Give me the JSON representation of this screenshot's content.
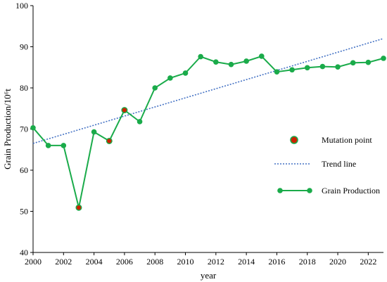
{
  "chart_data": {
    "type": "line",
    "title": "",
    "xlabel": "year",
    "ylabel": "Grain Production/10⁶t",
    "xlim": [
      2000,
      2023
    ],
    "ylim": [
      40,
      100
    ],
    "xticks": [
      "2000",
      "2002",
      "2004",
      "2006",
      "2008",
      "2010",
      "2012",
      "2014",
      "2016",
      "2018",
      "2020",
      "2022"
    ],
    "yticks": [
      "40",
      "50",
      "60",
      "70",
      "80",
      "90",
      "100"
    ],
    "grid": false,
    "legend_position": "right",
    "series": [
      {
        "name": "Grain Production",
        "color": "#1aab4a",
        "x": [
          2000,
          2001,
          2002,
          2003,
          2004,
          2005,
          2006,
          2007,
          2008,
          2009,
          2010,
          2011,
          2012,
          2013,
          2014,
          2015,
          2016,
          2017,
          2018,
          2019,
          2020,
          2021,
          2022,
          2023
        ],
        "y": [
          70.3,
          66.0,
          66.0,
          50.9,
          69.3,
          67.1,
          74.6,
          71.8,
          80.0,
          82.4,
          83.6,
          87.6,
          86.3,
          85.7,
          86.5,
          87.7,
          83.9,
          84.4,
          84.9,
          85.2,
          85.1,
          86.1,
          86.2,
          87.2
        ]
      }
    ],
    "trend_line": {
      "name": "Trend  line",
      "color": "#4472c4",
      "x": [
        2000,
        2023
      ],
      "y": [
        66.5,
        92.0
      ]
    },
    "mutation_points": {
      "name": "Mutation point",
      "fill": "#cc2200",
      "stroke": "#1aab4a",
      "x": [
        2003,
        2005,
        2006
      ],
      "y": [
        50.9,
        67.1,
        74.6
      ]
    }
  }
}
